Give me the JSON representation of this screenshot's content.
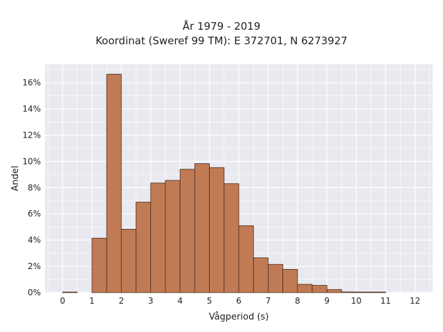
{
  "chart_data": {
    "type": "bar",
    "title": "År 1979 - 2019",
    "subtitle": "Koordinat (Sweref 99 TM): E 372701, N 6273927",
    "xlabel": "Vågperiod (s)",
    "ylabel": "Andel",
    "xlim": [
      -0.6,
      12.6
    ],
    "ylim": [
      0,
      0.174
    ],
    "x_ticks": [
      0,
      1,
      2,
      3,
      4,
      5,
      6,
      7,
      8,
      9,
      10,
      11,
      12
    ],
    "y_ticks": [
      {
        "value": 0.0,
        "label": "0%"
      },
      {
        "value": 0.02,
        "label": "2%"
      },
      {
        "value": 0.04,
        "label": "4%"
      },
      {
        "value": 0.06,
        "label": "6%"
      },
      {
        "value": 0.08,
        "label": "8%"
      },
      {
        "value": 0.1,
        "label": "10%"
      },
      {
        "value": 0.12,
        "label": "12%"
      },
      {
        "value": 0.14,
        "label": "14%"
      },
      {
        "value": 0.16,
        "label": "16%"
      }
    ],
    "bin_width": 0.5,
    "bin_starts": [
      0.0,
      0.5,
      1.0,
      1.5,
      2.0,
      2.5,
      3.0,
      3.5,
      4.0,
      4.5,
      5.0,
      5.5,
      6.0,
      6.5,
      7.0,
      7.5,
      8.0,
      8.5,
      9.0,
      9.5,
      10.0,
      10.5,
      11.0,
      11.5
    ],
    "values": [
      0.0002,
      0.0,
      0.0415,
      0.1665,
      0.0483,
      0.069,
      0.0835,
      0.0855,
      0.094,
      0.0983,
      0.0953,
      0.083,
      0.051,
      0.0265,
      0.0215,
      0.0177,
      0.0063,
      0.0055,
      0.0023,
      0.0005,
      0.0003,
      0.0002,
      0.0,
      0.0
    ],
    "grid": true,
    "colors": {
      "bar_fill": "#c07b55",
      "bar_edge": "#4a2a1a",
      "plot_background": "#e9e9f0",
      "grid": "#ffffff",
      "text": "#222222"
    }
  }
}
